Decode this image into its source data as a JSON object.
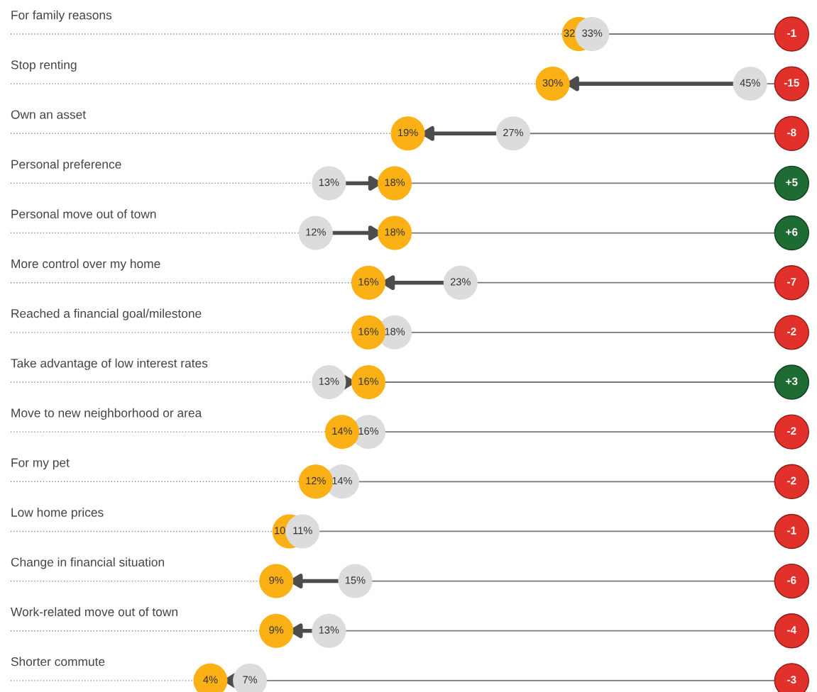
{
  "chart_data": {
    "type": "other",
    "categories": [
      "For family reasons",
      "Stop renting",
      "Own an asset",
      "Personal preference",
      "Personal move out of town",
      "More control over my home",
      "Reached a financial goal/milestone",
      "Take advantage of low interest rates",
      "Move to new neighborhood or area",
      "For my pet",
      "Low home prices",
      "Change in financial situation",
      "Work-related move out of town",
      "Shorter commute"
    ],
    "series": [
      {
        "color": "#fbb116",
        "values": [
          32,
          30,
          19,
          18,
          18,
          16,
          16,
          16,
          14,
          12,
          10,
          9,
          9,
          4
        ],
        "value_labels": [
          "32",
          "30%",
          "19%",
          "18%",
          "18%",
          "16%",
          "16%",
          "16%",
          "14%",
          "12%",
          "10",
          "9%",
          "9%",
          "4%"
        ]
      },
      {
        "color": "#dcdcdc",
        "values": [
          33,
          45,
          27,
          13,
          12,
          23,
          18,
          13,
          16,
          14,
          11,
          15,
          13,
          7
        ],
        "value_labels": [
          "33%",
          "45%",
          "27%",
          "13%",
          "12%",
          "23%",
          "18%",
          "13%",
          "16%",
          "14%",
          "11%",
          "15%",
          "13%",
          "7%"
        ]
      }
    ],
    "annotations": [
      "-1",
      "-15",
      "-8",
      "+5",
      "+6",
      "-7",
      "-2",
      "+3",
      "-2",
      "-2",
      "-1",
      "-6",
      "-4",
      "-3"
    ]
  }
}
